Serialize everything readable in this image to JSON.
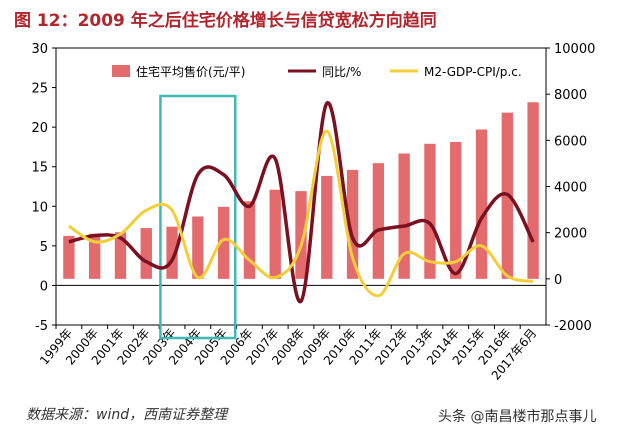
{
  "title": "图 12：2009 年之后住宅价格增长与信贷宽松方向趋同",
  "source": "数据来源：wind，西南证券整理",
  "watermark": "头条 @南昌楼市那点事儿",
  "colors": {
    "bar": "#e46b6d",
    "yoy": "#7a1020",
    "m2": "#f2cf3a",
    "highlight": "#3fb9b4",
    "title": "#b0262e"
  },
  "chart_data": {
    "type": "bar",
    "categories": [
      "1999年",
      "2000年",
      "2001年",
      "2002年",
      "2003年",
      "2004年",
      "2005年",
      "2006年",
      "2007年",
      "2008年",
      "2009年",
      "2010年",
      "2011年",
      "2012年",
      "2013年",
      "2014年",
      "2015年",
      "2016年",
      "2017年6月"
    ],
    "left_axis": {
      "ylim": [
        -5,
        30
      ],
      "ticks": [
        -5,
        0,
        5,
        10,
        15,
        20,
        25,
        30
      ]
    },
    "right_axis": {
      "ylim": [
        -2000,
        10000
      ],
      "ticks": [
        -2000,
        0,
        2000,
        4000,
        6000,
        8000,
        10000
      ]
    },
    "series": [
      {
        "name": "住宅平均售价(元/平)",
        "type": "bar",
        "axis": "right",
        "values": [
          1860,
          1950,
          2020,
          2200,
          2260,
          2700,
          3120,
          3360,
          3860,
          3800,
          4460,
          4720,
          5010,
          5430,
          5850,
          5930,
          6470,
          7200,
          7650
        ]
      },
      {
        "name": "同比/%",
        "type": "line",
        "axis": "left",
        "values": [
          5.5,
          6.3,
          6.0,
          3.0,
          3.2,
          14.0,
          14.0,
          10.0,
          16.0,
          -2.0,
          23.0,
          6.0,
          7.0,
          7.5,
          7.8,
          1.5,
          8.5,
          11.5,
          5.5
        ]
      },
      {
        "name": "M2-GDP-CPI/p.c.",
        "type": "line",
        "axis": "left",
        "values": [
          7.5,
          5.5,
          6.5,
          9.5,
          9.5,
          1.0,
          5.8,
          3.2,
          1.0,
          5.0,
          19.5,
          3.5,
          -1.3,
          4.0,
          3.0,
          3.0,
          5.0,
          1.2,
          0.5
        ]
      }
    ],
    "highlight_range": [
      "2003年",
      "2005年"
    ],
    "legend_position": "top"
  }
}
